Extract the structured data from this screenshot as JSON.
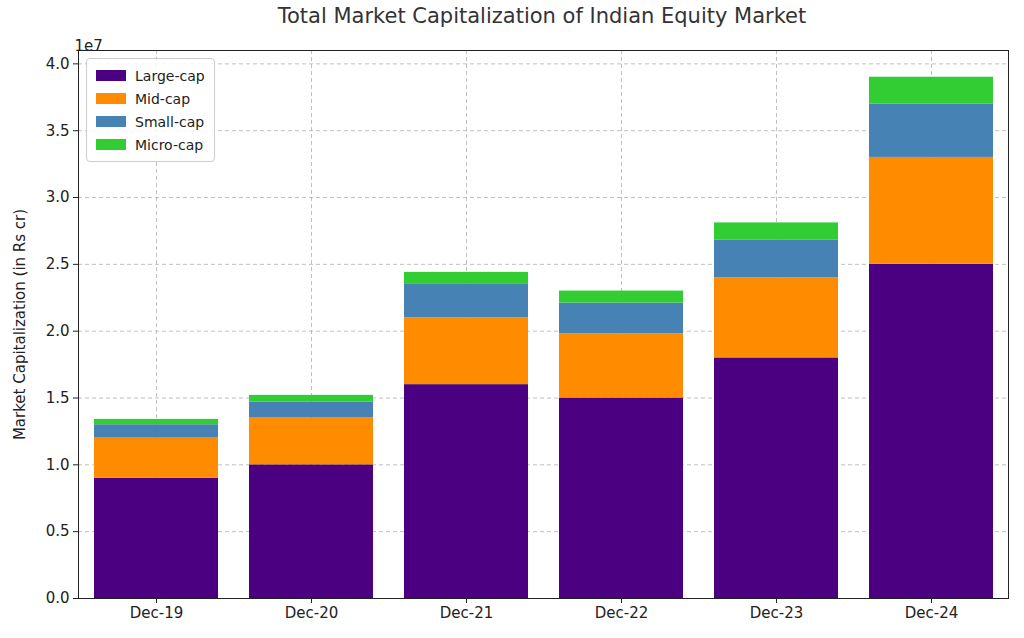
{
  "chart_data": {
    "type": "bar",
    "stacked": true,
    "title": "Total Market Capitalization of Indian Equity Market",
    "y_label": "Market Capitalization (in Rs cr)",
    "annotations": [
      "1e7"
    ],
    "categories": [
      "Dec-19",
      "Dec-20",
      "Dec-21",
      "Dec-22",
      "Dec-23",
      "Dec-24"
    ],
    "series": [
      {
        "name": "Large-cap",
        "color": "#4b0082",
        "values": [
          0.9,
          1.0,
          1.6,
          1.5,
          1.8,
          2.5
        ]
      },
      {
        "name": "Mid-cap",
        "color": "#ff8c00",
        "values": [
          0.3,
          0.35,
          0.5,
          0.48,
          0.6,
          0.8
        ]
      },
      {
        "name": "Small-cap",
        "color": "#4682b4",
        "values": [
          0.1,
          0.12,
          0.25,
          0.23,
          0.28,
          0.4
        ]
      },
      {
        "name": "Micro-cap",
        "color": "#32cd32",
        "values": [
          0.04,
          0.05,
          0.09,
          0.09,
          0.13,
          0.2
        ]
      }
    ],
    "ylim": [
      0,
      4.1
    ],
    "yticks": [
      {
        "value": 0,
        "label": "0.0"
      },
      0.5,
      {
        "value": 1,
        "label": "1.0"
      },
      1.5,
      {
        "value": 2,
        "label": "2.0"
      },
      2.5,
      {
        "value": 3,
        "label": "3.0"
      },
      3.5,
      {
        "value": 4,
        "label": "4.0"
      }
    ],
    "grid": true,
    "legend": "upper left"
  }
}
